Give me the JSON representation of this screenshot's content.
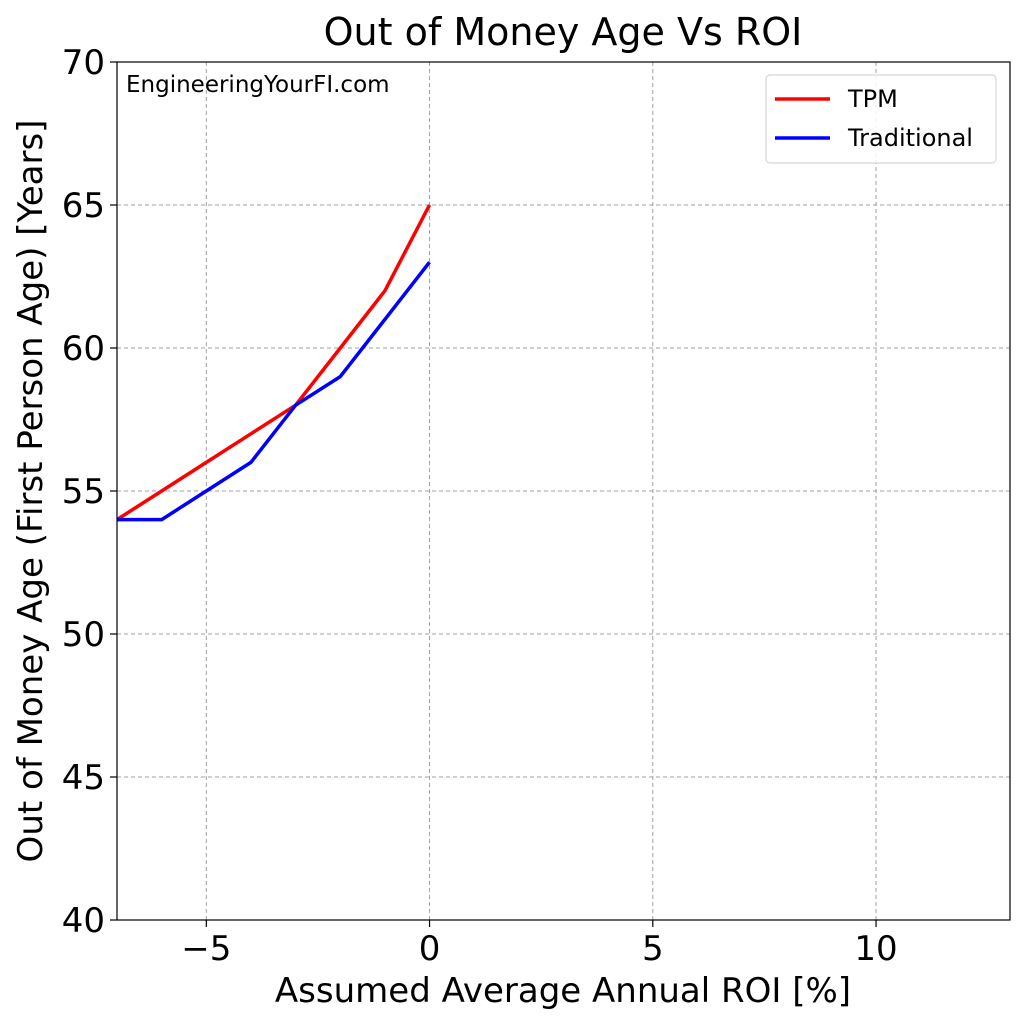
{
  "chart_data": {
    "type": "line",
    "title": "Out of Money Age Vs ROI",
    "xlabel": "Assumed Average Annual ROI [%]",
    "ylabel": "Out of Money Age (First Person Age) [Years]",
    "xlim": [
      -7,
      13
    ],
    "ylim": [
      40,
      70
    ],
    "xticks": [
      -5,
      0,
      5,
      10
    ],
    "xtick_labels": [
      "−5",
      "0",
      "5",
      "10"
    ],
    "yticks": [
      40,
      45,
      50,
      55,
      60,
      65,
      70
    ],
    "ytick_labels": [
      "40",
      "45",
      "50",
      "55",
      "60",
      "65",
      "70"
    ],
    "grid": true,
    "legend_position": "top-right",
    "series": [
      {
        "name": "TPM",
        "color": "#ff0000",
        "x": [
          -7,
          -6,
          -5,
          -4,
          -3,
          -2,
          -1,
          0
        ],
        "y": [
          54,
          55,
          56,
          57,
          58,
          60,
          62,
          65
        ]
      },
      {
        "name": "Traditional",
        "color": "#0000ff",
        "x": [
          -7,
          -6,
          -5,
          -4,
          -3,
          -2,
          -1,
          0
        ],
        "y": [
          54,
          54,
          55,
          56,
          58,
          59,
          61,
          63
        ]
      }
    ],
    "annotations": [
      "EngineeringYourFI.com"
    ]
  }
}
